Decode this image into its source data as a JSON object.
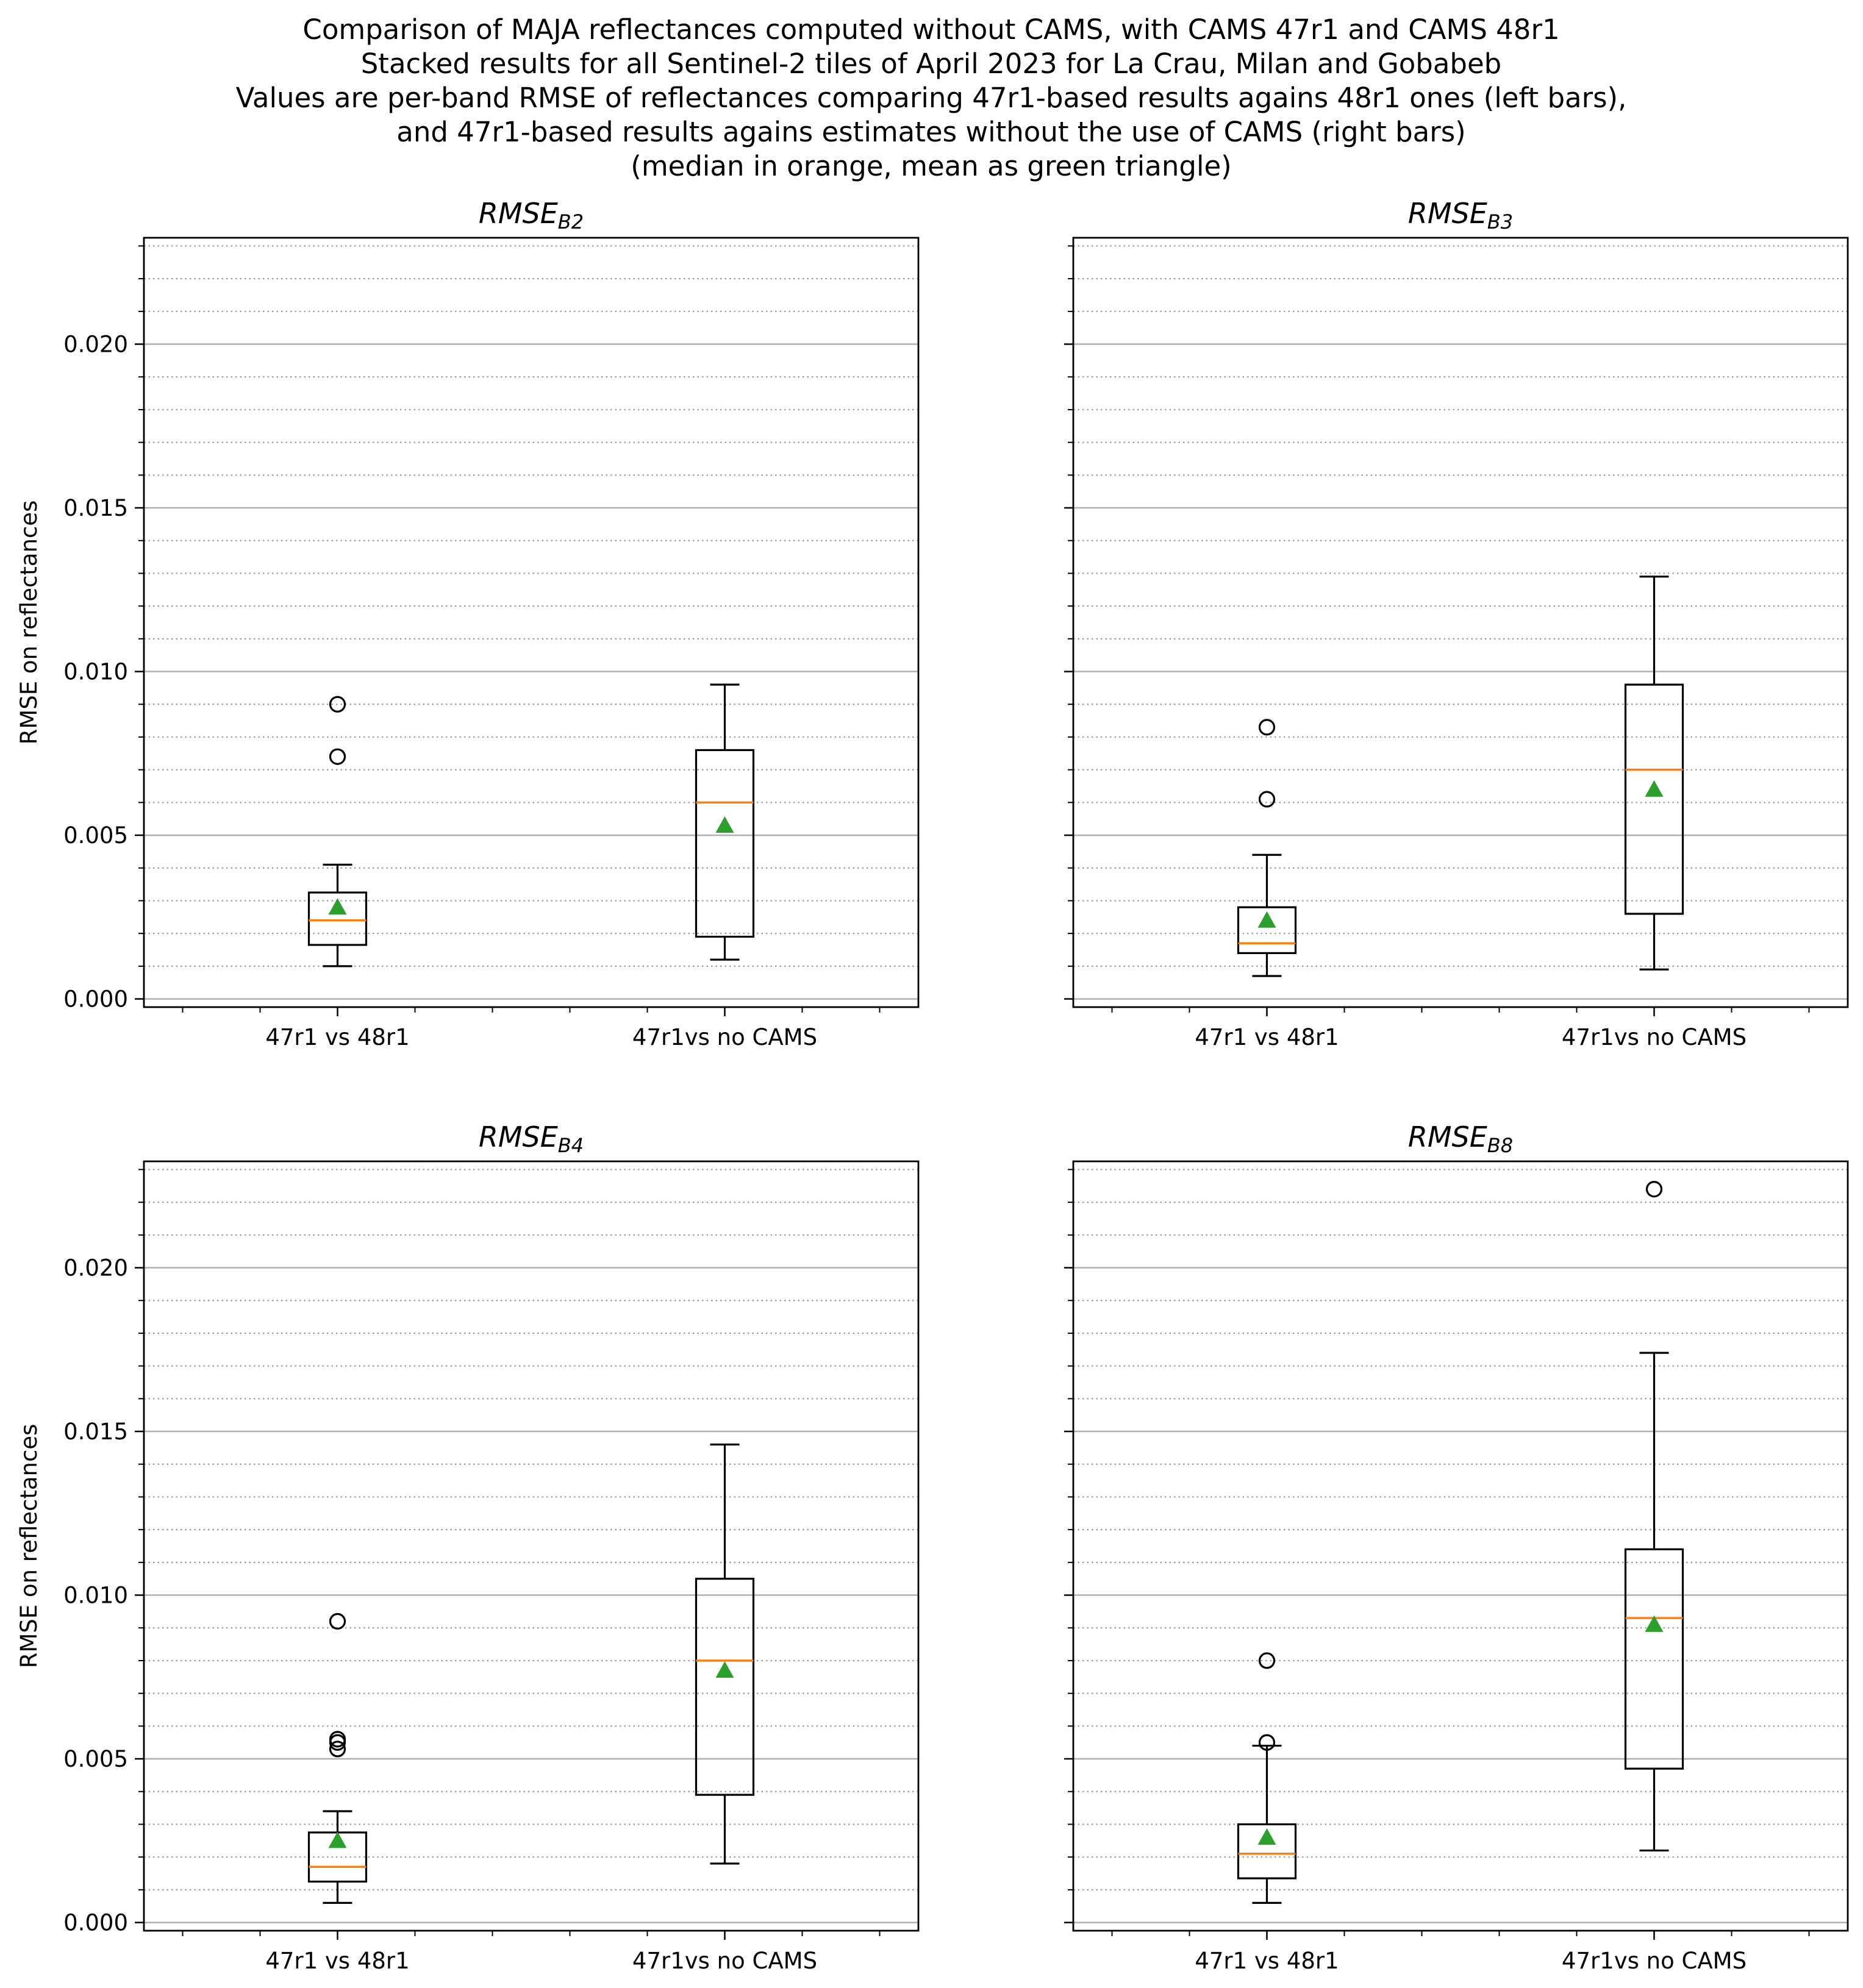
{
  "figure": {
    "title_lines": [
      "Comparison of MAJA reflectances computed without CAMS, with CAMS 47r1 and CAMS 48r1",
      "Stacked results for all Sentinel-2 tiles of April 2023 for La Crau, Milan and Gobabeb",
      "Values are per-band RMSE of reflectances comparing 47r1-based results agains 48r1 ones (left bars),",
      "and 47r1-based results agains estimates without the use of CAMS (right bars)",
      "(median in orange, mean as green triangle)"
    ],
    "ylabel": "RMSE on reflectances"
  },
  "colors": {
    "box": "#000000",
    "median": "#ff7f0e",
    "mean": "#2ca02c",
    "major_grid": "#b0b0b0",
    "minor_grid": "#9a9a9a"
  },
  "chart_data": [
    {
      "type": "box",
      "title_base": "RMSE",
      "title_sub": "B2",
      "categories": [
        "47r1 vs 48r1",
        "47r1vs no CAMS"
      ],
      "ylim": [
        -0.00025,
        0.02325
      ],
      "yticks": [
        "0.000",
        "0.005",
        "0.010",
        "0.015",
        "0.020"
      ],
      "grid": "major solid, minor dotted",
      "boxes": [
        {
          "whislo": 0.001,
          "q1": 0.00165,
          "med": 0.0024,
          "q3": 0.00325,
          "whishi": 0.0041,
          "mean": 0.0028,
          "fliers": [
            0.0074,
            0.009
          ]
        },
        {
          "whislo": 0.0012,
          "q1": 0.0019,
          "med": 0.006,
          "q3": 0.0076,
          "whishi": 0.0096,
          "mean": 0.0053,
          "fliers": []
        }
      ]
    },
    {
      "type": "box",
      "title_base": "RMSE",
      "title_sub": "B3",
      "categories": [
        "47r1 vs 48r1",
        "47r1vs no CAMS"
      ],
      "ylim": [
        -0.00025,
        0.02325
      ],
      "yticks": [
        "0.000",
        "0.005",
        "0.010",
        "0.015",
        "0.020"
      ],
      "grid": "major solid, minor dotted",
      "boxes": [
        {
          "whislo": 0.0007,
          "q1": 0.0014,
          "med": 0.0017,
          "q3": 0.0028,
          "whishi": 0.0044,
          "mean": 0.0024,
          "fliers": [
            0.0061,
            0.0083
          ]
        },
        {
          "whislo": 0.0009,
          "q1": 0.0026,
          "med": 0.007,
          "q3": 0.0096,
          "whishi": 0.0129,
          "mean": 0.0064,
          "fliers": []
        }
      ]
    },
    {
      "type": "box",
      "title_base": "RMSE",
      "title_sub": "B4",
      "categories": [
        "47r1 vs 48r1",
        "47r1vs no CAMS"
      ],
      "ylim": [
        -0.00025,
        0.02325
      ],
      "yticks": [
        "0.000",
        "0.005",
        "0.010",
        "0.015",
        "0.020"
      ],
      "grid": "major solid, minor dotted",
      "boxes": [
        {
          "whislo": 0.0006,
          "q1": 0.00125,
          "med": 0.0017,
          "q3": 0.00275,
          "whishi": 0.0034,
          "mean": 0.0025,
          "fliers": [
            0.0053,
            0.0055,
            0.0056,
            0.0092
          ]
        },
        {
          "whislo": 0.0018,
          "q1": 0.0039,
          "med": 0.008,
          "q3": 0.0105,
          "whishi": 0.0146,
          "mean": 0.0077,
          "fliers": []
        }
      ]
    },
    {
      "type": "box",
      "title_base": "RMSE",
      "title_sub": "B8",
      "categories": [
        "47r1 vs 48r1",
        "47r1vs no CAMS"
      ],
      "ylim": [
        -0.00025,
        0.02325
      ],
      "yticks": [
        "0.000",
        "0.005",
        "0.010",
        "0.015",
        "0.020"
      ],
      "grid": "major solid, minor dotted",
      "boxes": [
        {
          "whislo": 0.0006,
          "q1": 0.00135,
          "med": 0.0021,
          "q3": 0.003,
          "whishi": 0.0054,
          "mean": 0.0026,
          "fliers": [
            0.0055,
            0.008
          ]
        },
        {
          "whislo": 0.0022,
          "q1": 0.0047,
          "med": 0.0093,
          "q3": 0.0114,
          "whishi": 0.0174,
          "mean": 0.0091,
          "fliers": [
            0.0224
          ]
        }
      ]
    }
  ]
}
